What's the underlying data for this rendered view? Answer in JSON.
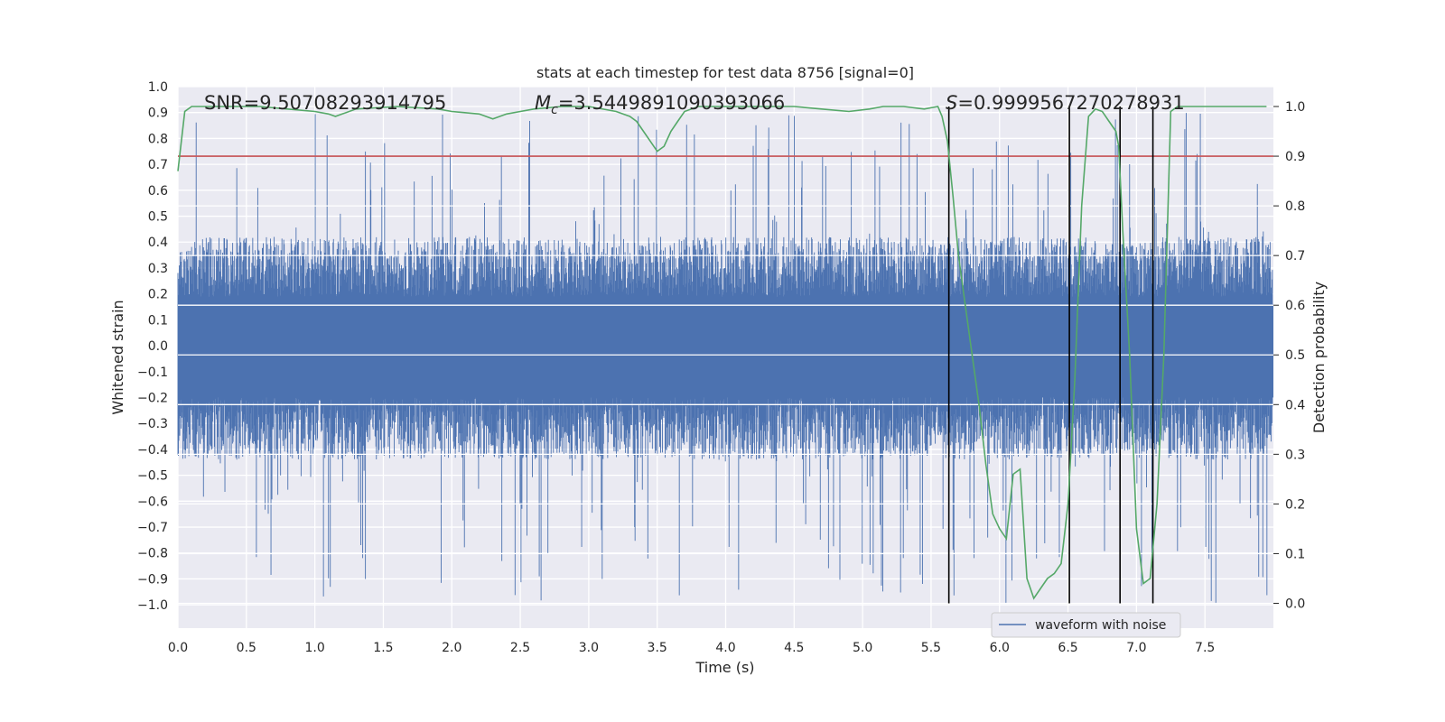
{
  "chart_data": {
    "type": "line",
    "title": "stats at each timestep for test data 8756 [signal=0]",
    "xlabel": "Time (s)",
    "ylabel_left": "Whitened strain",
    "ylabel_right": "Detection probability",
    "xlim": [
      0.0,
      8.0
    ],
    "ylim_left": [
      -1.09,
      1.0
    ],
    "ylim_right": [
      -0.05,
      1.04
    ],
    "grid": true,
    "x_ticks": [
      "0.0",
      "0.5",
      "1.0",
      "1.5",
      "2.0",
      "2.5",
      "3.0",
      "3.5",
      "4.0",
      "4.5",
      "5.0",
      "5.5",
      "6.0",
      "6.5",
      "7.0",
      "7.5"
    ],
    "y_left_ticks": [
      "1.0",
      "0.9",
      "0.8",
      "0.7",
      "0.6",
      "0.5",
      "0.4",
      "0.3",
      "0.2",
      "0.1",
      "0.0",
      "−0.1",
      "−0.2",
      "−0.3",
      "−0.4",
      "−0.5",
      "−0.6",
      "−0.7",
      "−0.8",
      "−0.9",
      "−1.0"
    ],
    "y_right_ticks": [
      "1.0",
      "0.9",
      "0.8",
      "0.7",
      "0.6",
      "0.5",
      "0.4",
      "0.3",
      "0.2",
      "0.1",
      "0.0"
    ],
    "annotations": {
      "snr": "SNR=9.50708293914795",
      "mc": "=3.5449891090393066",
      "mc_symbol": "M",
      "mc_sub": "c",
      "s": "=0.9999567270278931",
      "s_symbol": "S"
    },
    "legend": [
      {
        "label": "waveform with noise",
        "color": "#4c72b0"
      }
    ],
    "threshold": {
      "value": 0.9,
      "color": "#c44e52",
      "axis": "right"
    },
    "vertical_markers": [
      5.63,
      6.51,
      6.88,
      7.12
    ],
    "series": [
      {
        "name": "waveform with noise",
        "color": "#4c72b0",
        "axis": "left",
        "envelope": {
          "typical_high": 0.42,
          "typical_low": -0.44,
          "spike_max": 0.9,
          "spike_min": -1.0
        }
      },
      {
        "name": "detection probability",
        "color": "#55a868",
        "axis": "right",
        "x": [
          0.0,
          0.05,
          0.1,
          0.3,
          0.6,
          0.8,
          1.0,
          1.1,
          1.15,
          1.2,
          1.3,
          1.6,
          1.9,
          2.0,
          2.2,
          2.3,
          2.4,
          2.5,
          2.6,
          2.8,
          3.0,
          3.2,
          3.3,
          3.35,
          3.4,
          3.45,
          3.5,
          3.55,
          3.6,
          3.65,
          3.7,
          3.8,
          4.0,
          4.5,
          4.7,
          4.9,
          5.05,
          5.15,
          5.3,
          5.45,
          5.55,
          5.58,
          5.62,
          5.66,
          5.7,
          5.75,
          5.8,
          5.85,
          5.9,
          5.95,
          6.0,
          6.05,
          6.1,
          6.15,
          6.2,
          6.25,
          6.3,
          6.35,
          6.4,
          6.45,
          6.5,
          6.55,
          6.6,
          6.65,
          6.7,
          6.75,
          6.8,
          6.85,
          6.87,
          6.9,
          6.95,
          7.0,
          7.05,
          7.1,
          7.15,
          7.2,
          7.25,
          7.3,
          7.4,
          7.6,
          7.8,
          7.95
        ],
        "y": [
          0.87,
          0.99,
          1.0,
          1.0,
          1.0,
          0.995,
          0.99,
          0.985,
          0.98,
          0.985,
          0.995,
          1.0,
          0.995,
          0.99,
          0.985,
          0.975,
          0.985,
          0.99,
          0.995,
          1.0,
          1.0,
          0.99,
          0.98,
          0.97,
          0.95,
          0.93,
          0.91,
          0.92,
          0.95,
          0.97,
          0.99,
          1.0,
          1.0,
          1.0,
          0.995,
          0.99,
          0.995,
          1.0,
          1.0,
          0.995,
          1.0,
          0.98,
          0.93,
          0.82,
          0.7,
          0.6,
          0.5,
          0.4,
          0.28,
          0.18,
          0.15,
          0.13,
          0.26,
          0.27,
          0.05,
          0.01,
          0.03,
          0.05,
          0.06,
          0.08,
          0.2,
          0.45,
          0.8,
          0.98,
          0.995,
          0.99,
          0.97,
          0.95,
          0.92,
          0.75,
          0.5,
          0.15,
          0.04,
          0.05,
          0.2,
          0.5,
          0.99,
          1.0,
          1.0,
          1.0,
          1.0,
          1.0
        ]
      }
    ]
  }
}
